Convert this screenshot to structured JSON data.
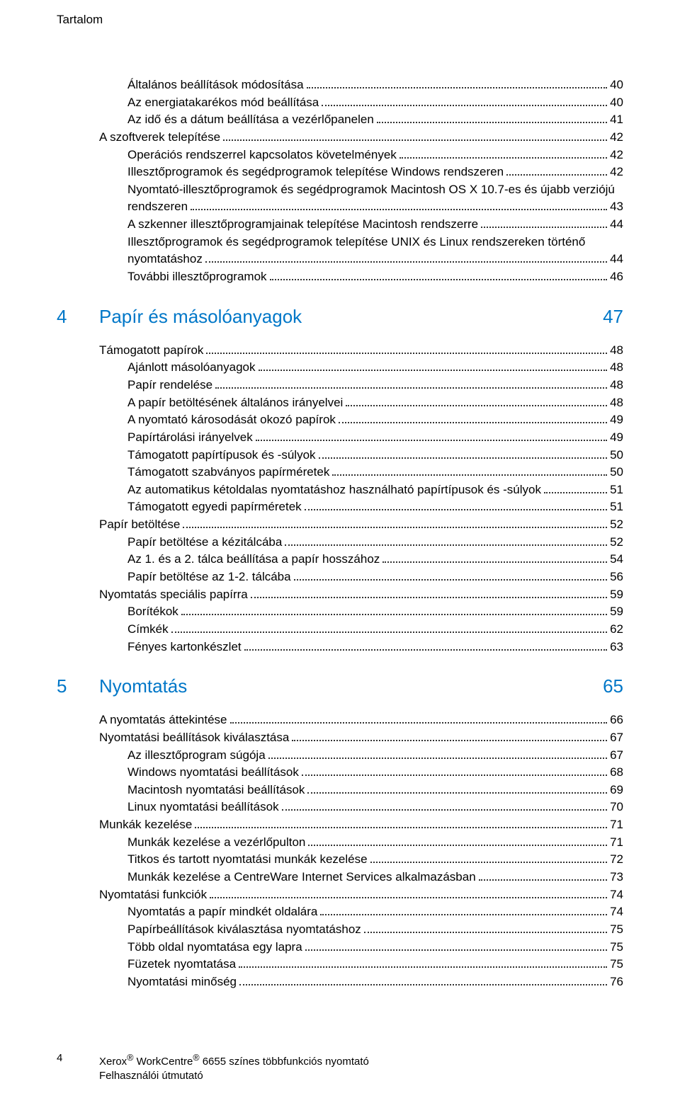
{
  "running_head": "Tartalom",
  "colors": {
    "accent": "#0077c8",
    "text": "#000000",
    "bg": "#ffffff"
  },
  "sections": [
    {
      "type": "toc",
      "items": [
        {
          "indent": 2,
          "label": "Általános beállítások módosítása",
          "page": "40"
        },
        {
          "indent": 2,
          "label": "Az energiatakarékos mód beállítása",
          "page": "40"
        },
        {
          "indent": 2,
          "label": "Az idő és a dátum beállítása a vezérlőpanelen",
          "page": "41"
        },
        {
          "indent": 1,
          "label": "A szoftverek telepítése",
          "page": "42"
        },
        {
          "indent": 2,
          "label": "Operációs rendszerrel kapcsolatos követelmények",
          "page": "42"
        },
        {
          "indent": 2,
          "label": "Illesztőprogramok és segédprogramok telepítése Windows rendszeren",
          "page": "42"
        },
        {
          "indent": 2,
          "label": "Nyomtató-illesztőprogramok és segédprogramok Macintosh OS X 10.7-es és újabb verziójú",
          "page": "",
          "nopage": true
        },
        {
          "indent": 2,
          "label": "rendszeren",
          "page": "43"
        },
        {
          "indent": 2,
          "label": "A szkenner illesztőprogramjainak telepítése Macintosh rendszerre",
          "page": "44"
        },
        {
          "indent": 2,
          "label": "Illesztőprogramok és segédprogramok telepítése UNIX és Linux rendszereken történő",
          "page": "",
          "nopage": true
        },
        {
          "indent": 2,
          "label": "nyomtatáshoz",
          "page": "44"
        },
        {
          "indent": 2,
          "label": "További illesztőprogramok",
          "page": "46"
        }
      ]
    },
    {
      "type": "chapter",
      "num": "4",
      "title": "Papír és másolóanyagok",
      "page": "47"
    },
    {
      "type": "toc",
      "items": [
        {
          "indent": 1,
          "label": "Támogatott papírok",
          "page": "48"
        },
        {
          "indent": 2,
          "label": "Ajánlott másolóanyagok",
          "page": "48"
        },
        {
          "indent": 2,
          "label": "Papír rendelése",
          "page": "48"
        },
        {
          "indent": 2,
          "label": "A papír betöltésének általános irányelvei",
          "page": "48"
        },
        {
          "indent": 2,
          "label": "A nyomtató károsodását okozó papírok",
          "page": "49"
        },
        {
          "indent": 2,
          "label": "Papírtárolási irányelvek",
          "page": "49"
        },
        {
          "indent": 2,
          "label": "Támogatott papírtípusok és -súlyok",
          "page": "50"
        },
        {
          "indent": 2,
          "label": "Támogatott szabványos papírméretek",
          "page": "50"
        },
        {
          "indent": 2,
          "label": "Az automatikus kétoldalas nyomtatáshoz használható papírtípusok és -súlyok",
          "page": "51"
        },
        {
          "indent": 2,
          "label": "Támogatott egyedi papírméretek",
          "page": "51"
        },
        {
          "indent": 1,
          "label": "Papír betöltése",
          "page": "52"
        },
        {
          "indent": 2,
          "label": "Papír betöltése a kézitálcába",
          "page": "52"
        },
        {
          "indent": 2,
          "label": "Az 1. és a 2. tálca beállítása a papír hosszához",
          "page": "54"
        },
        {
          "indent": 2,
          "label": "Papír betöltése az 1-2. tálcába",
          "page": "56"
        },
        {
          "indent": 1,
          "label": "Nyomtatás speciális papírra",
          "page": "59"
        },
        {
          "indent": 2,
          "label": "Borítékok",
          "page": "59"
        },
        {
          "indent": 2,
          "label": "Címkék",
          "page": "62"
        },
        {
          "indent": 2,
          "label": "Fényes kartonkészlet",
          "page": "63"
        }
      ]
    },
    {
      "type": "chapter",
      "num": "5",
      "title": "Nyomtatás",
      "page": "65"
    },
    {
      "type": "toc",
      "items": [
        {
          "indent": 1,
          "label": "A nyomtatás áttekintése",
          "page": "66"
        },
        {
          "indent": 1,
          "label": "Nyomtatási beállítások kiválasztása",
          "page": "67"
        },
        {
          "indent": 2,
          "label": "Az illesztőprogram súgója",
          "page": "67"
        },
        {
          "indent": 2,
          "label": "Windows nyomtatási beállítások",
          "page": "68"
        },
        {
          "indent": 2,
          "label": "Macintosh nyomtatási beállítások",
          "page": "69"
        },
        {
          "indent": 2,
          "label": "Linux nyomtatási beállítások",
          "page": "70"
        },
        {
          "indent": 1,
          "label": "Munkák kezelése",
          "page": "71"
        },
        {
          "indent": 2,
          "label": "Munkák kezelése a vezérlőpulton",
          "page": "71"
        },
        {
          "indent": 2,
          "label": "Titkos és tartott nyomtatási munkák kezelése",
          "page": "72"
        },
        {
          "indent": 2,
          "label": "Munkák kezelése a CentreWare Internet Services alkalmazásban",
          "page": "73"
        },
        {
          "indent": 1,
          "label": "Nyomtatási funkciók",
          "page": "74"
        },
        {
          "indent": 2,
          "label": "Nyomtatás a papír mindkét oldalára",
          "page": "74"
        },
        {
          "indent": 2,
          "label": "Papírbeállítások kiválasztása nyomtatáshoz",
          "page": "75"
        },
        {
          "indent": 2,
          "label": "Több oldal nyomtatása egy lapra",
          "page": "75"
        },
        {
          "indent": 2,
          "label": "Füzetek nyomtatása",
          "page": "75"
        },
        {
          "indent": 2,
          "label": "Nyomtatási minőség",
          "page": "76"
        }
      ]
    }
  ],
  "footer": {
    "page_number": "4",
    "line1_prefix": "Xerox",
    "line1_mid": " WorkCentre",
    "line1_suffix": " 6655 színes többfunkciós nyomtató",
    "line2": "Felhasználói útmutató"
  }
}
